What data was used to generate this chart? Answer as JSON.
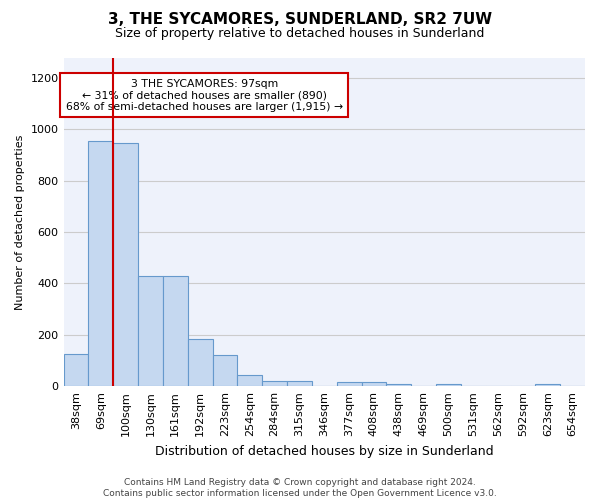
{
  "title": "3, THE SYCAMORES, SUNDERLAND, SR2 7UW",
  "subtitle": "Size of property relative to detached houses in Sunderland",
  "xlabel": "Distribution of detached houses by size in Sunderland",
  "ylabel": "Number of detached properties",
  "footer_line1": "Contains HM Land Registry data © Crown copyright and database right 2024.",
  "footer_line2": "Contains public sector information licensed under the Open Government Licence v3.0.",
  "categories": [
    "38sqm",
    "69sqm",
    "100sqm",
    "130sqm",
    "161sqm",
    "192sqm",
    "223sqm",
    "254sqm",
    "284sqm",
    "315sqm",
    "346sqm",
    "377sqm",
    "408sqm",
    "438sqm",
    "469sqm",
    "500sqm",
    "531sqm",
    "562sqm",
    "592sqm",
    "623sqm",
    "654sqm"
  ],
  "values": [
    125,
    955,
    948,
    430,
    430,
    185,
    120,
    43,
    20,
    20,
    0,
    15,
    18,
    10,
    0,
    10,
    0,
    0,
    0,
    10,
    0
  ],
  "bar_color": "#c5d8f0",
  "bar_edge_color": "#6699cc",
  "ylim": [
    0,
    1280
  ],
  "yticks": [
    0,
    200,
    400,
    600,
    800,
    1000,
    1200
  ],
  "property_label": "3 THE SYCAMORES: 97sqm",
  "annotation_line1": "← 31% of detached houses are smaller (890)",
  "annotation_line2": "68% of semi-detached houses are larger (1,915) →",
  "vline_x": 1.5,
  "vline_color": "#cc0000",
  "annotation_box_color": "#cc0000",
  "background_color": "#eef2fb",
  "grid_color": "#cccccc",
  "title_fontsize": 11,
  "subtitle_fontsize": 9,
  "ylabel_fontsize": 8,
  "xlabel_fontsize": 9,
  "tick_fontsize": 8,
  "footer_fontsize": 6.5
}
